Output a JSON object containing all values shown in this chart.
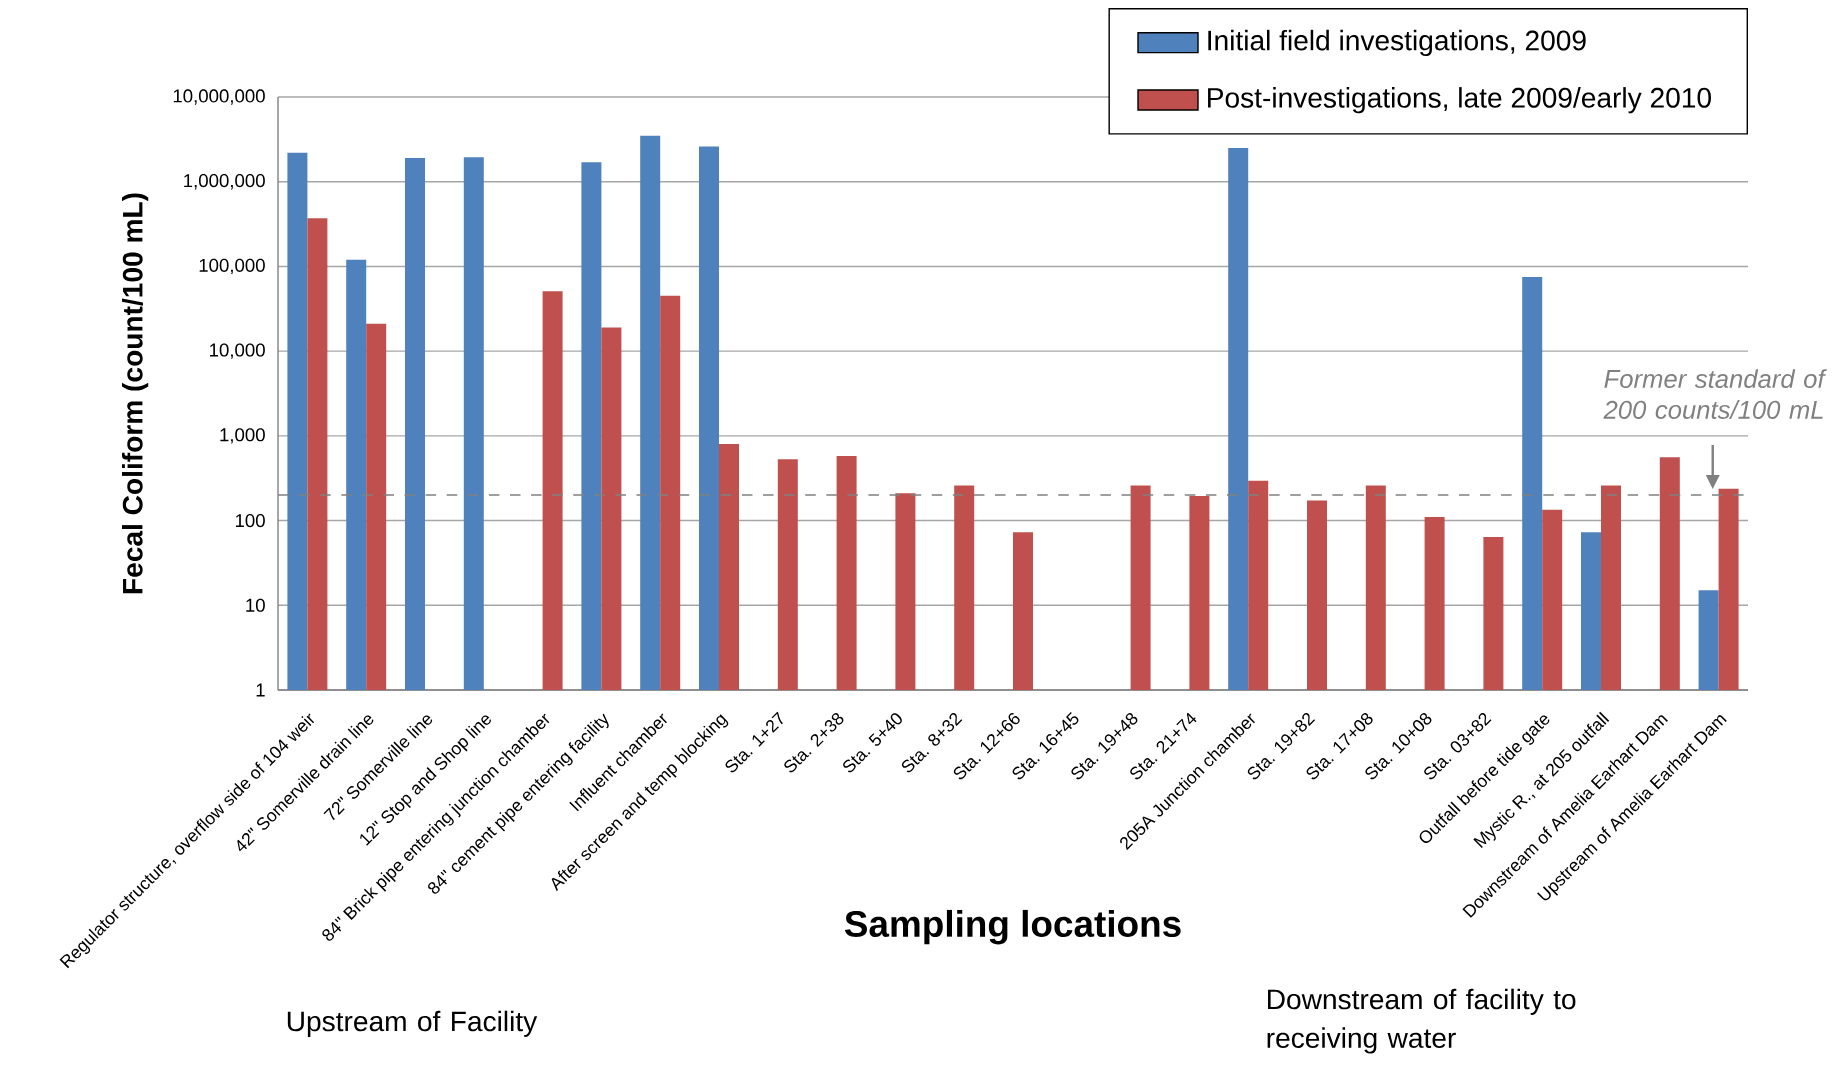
{
  "chart_data": {
    "type": "bar",
    "xlabel": "Sampling locations",
    "ylabel": "Fecal Coliform (count/100 mL)",
    "categories": [
      "Regulator structure, overflow side of 104 weir",
      "42\" Somerville drain line",
      "72\" Somerville line",
      "12\" Stop and Shop line",
      "84\" Brick pipe entering junction chamber",
      "84\" cement pipe entering facility",
      "Influent chamber",
      "After screen and temp blocking",
      "Sta. 1+27",
      "Sta. 2+38",
      "Sta. 5+40",
      "Sta. 8+32",
      "Sta. 12+66",
      "Sta. 16+45",
      "Sta. 19+48",
      "Sta. 21+74",
      "205A Junction chamber",
      "Sta. 19+82",
      "Sta. 17+08",
      "Sta. 10+08",
      "Sta. 03+82",
      "Outfall before tide gate",
      "Mystic R., at 205 outfall",
      "Downstream of Amelia Earhart Dam",
      "Upstream of Amelia Earhart Dam"
    ],
    "series": [
      {
        "name": "Initial field investigations, 2009",
        "color": "#4f81bd",
        "values": [
          2200000,
          120000,
          1900000,
          1950000,
          null,
          1700000,
          3500000,
          2600000,
          null,
          null,
          null,
          null,
          null,
          null,
          null,
          null,
          2500000,
          null,
          null,
          null,
          null,
          75000,
          73,
          null,
          15
        ]
      },
      {
        "name": "Post-investigations, late 2009/early 2010",
        "color": "#c0504d",
        "values": [
          370000,
          21000,
          null,
          null,
          51000,
          19000,
          45000,
          800,
          530,
          580,
          210,
          260,
          73,
          null,
          260,
          195,
          295,
          173,
          260,
          110,
          64,
          134,
          260,
          560,
          237
        ]
      }
    ],
    "log": "y",
    "ylim": [
      1,
      10000000
    ],
    "yticks": [
      1,
      10,
      100,
      {
        "value": 1000,
        "label": "1,000"
      },
      {
        "value": 10000,
        "label": "10,000"
      },
      {
        "value": 100000,
        "label": "100,000"
      },
      {
        "value": 1000000,
        "label": "1,000,000"
      },
      {
        "value": 10000000,
        "label": "10,000,000"
      }
    ],
    "grid": "y",
    "legend": "top right",
    "ref_lines": [
      {
        "axis": "y",
        "value": 200,
        "label": "Former standard of 200 counts/100 mL",
        "color": "#808080",
        "line_style": "dashed"
      }
    ],
    "annotations": [
      "Upstream of Facility",
      "Downstream of facility to receiving water"
    ]
  }
}
